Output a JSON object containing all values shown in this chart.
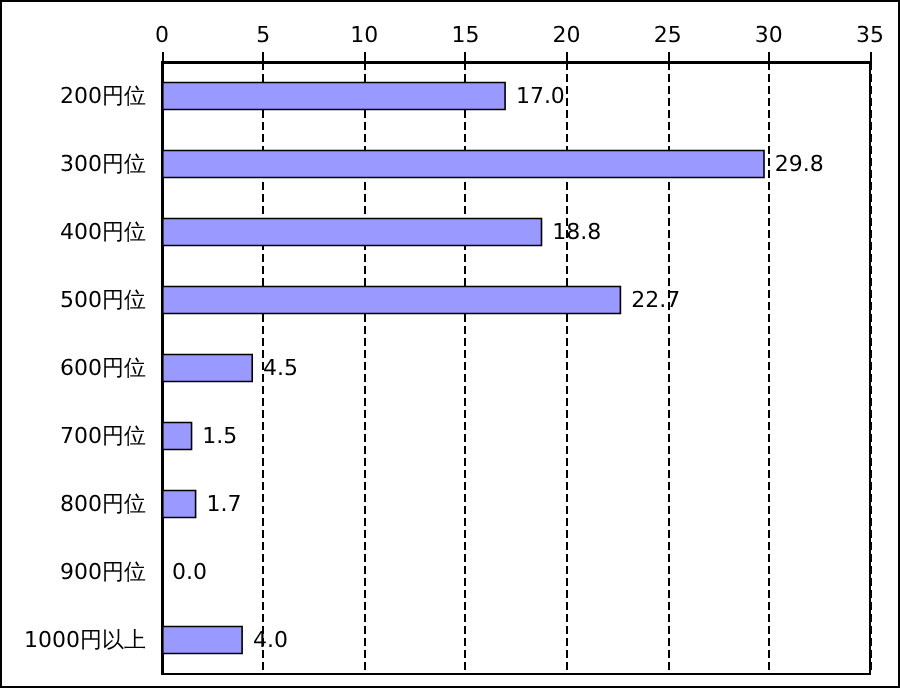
{
  "chart_data": {
    "type": "bar",
    "orientation": "horizontal",
    "categories": [
      "200円位",
      "300円位",
      "400円位",
      "500円位",
      "600円位",
      "700円位",
      "800円位",
      "900円位",
      "1000円以上"
    ],
    "values": [
      17.0,
      29.8,
      18.8,
      22.7,
      4.5,
      1.5,
      1.7,
      0.0,
      4.0
    ],
    "value_labels": [
      "17.0",
      "29.8",
      "18.8",
      "22.7",
      "4.5",
      "1.5",
      "1.7",
      "0.0",
      "4.0"
    ],
    "color": "#9999ff",
    "xlim": [
      0,
      35
    ],
    "xticks": [
      0,
      5,
      10,
      15,
      20,
      25,
      30,
      35
    ],
    "grid": "x"
  }
}
